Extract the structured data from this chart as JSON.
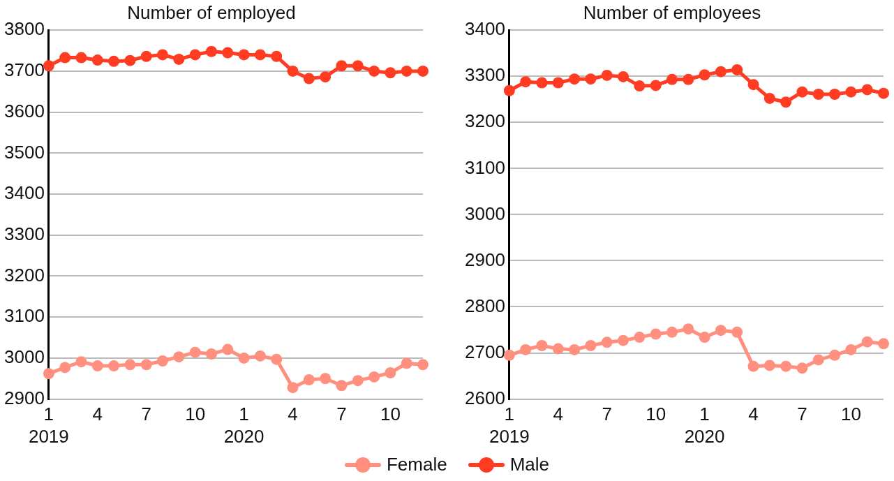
{
  "chart_data": [
    {
      "type": "line",
      "title": "Number of employed",
      "categories": [
        "1\n2019",
        null,
        null,
        "4",
        null,
        null,
        "7",
        null,
        null,
        "10",
        null,
        null,
        "1\n2020",
        null,
        null,
        "4",
        null,
        null,
        "7",
        null,
        null,
        "10",
        null,
        null
      ],
      "series": [
        {
          "name": "Female",
          "color": "#ff9080",
          "values": [
            2962,
            2977,
            2991,
            2981,
            2981,
            2984,
            2984,
            2993,
            3003,
            3014,
            3010,
            3021,
            3000,
            3005,
            2997,
            2928,
            2947,
            2950,
            2933,
            2945,
            2954,
            2964,
            2987,
            2984
          ]
        },
        {
          "name": "Male",
          "color": "#ff3b22",
          "values": [
            3713,
            3733,
            3733,
            3727,
            3724,
            3726,
            3736,
            3740,
            3729,
            3740,
            3748,
            3745,
            3740,
            3740,
            3736,
            3700,
            3682,
            3686,
            3713,
            3713,
            3700,
            3696,
            3700,
            3700
          ]
        }
      ],
      "ylim": [
        2900,
        3800
      ],
      "yticks": [
        2900,
        3000,
        3100,
        3200,
        3300,
        3400,
        3500,
        3600,
        3700,
        3800
      ],
      "grid": "y",
      "legend": "bottom",
      "marker": "circle",
      "line_style": "solid"
    },
    {
      "type": "line",
      "title": "Number of employees",
      "categories": [
        "1\n2019",
        null,
        null,
        "4",
        null,
        null,
        "7",
        null,
        null,
        "10",
        null,
        null,
        "1\n2020",
        null,
        null,
        "4",
        null,
        null,
        "7",
        null,
        null,
        "10",
        null,
        null
      ],
      "series": [
        {
          "name": "Female",
          "color": "#ff9080",
          "values": [
            2695,
            2707,
            2716,
            2709,
            2707,
            2716,
            2723,
            2727,
            2734,
            2741,
            2745,
            2752,
            2734,
            2749,
            2745,
            2671,
            2673,
            2671,
            2667,
            2685,
            2695,
            2707,
            2724,
            2720
          ]
        },
        {
          "name": "Male",
          "color": "#ff3b22",
          "values": [
            3269,
            3288,
            3286,
            3286,
            3294,
            3294,
            3302,
            3299,
            3279,
            3280,
            3293,
            3293,
            3303,
            3310,
            3314,
            3282,
            3252,
            3244,
            3266,
            3261,
            3261,
            3266,
            3271,
            3263
          ]
        }
      ],
      "ylim": [
        2600,
        3400
      ],
      "yticks": [
        2600,
        2700,
        2800,
        2900,
        3000,
        3100,
        3200,
        3300,
        3400
      ],
      "grid": "y",
      "legend": "bottom",
      "marker": "circle",
      "line_style": "solid"
    }
  ]
}
